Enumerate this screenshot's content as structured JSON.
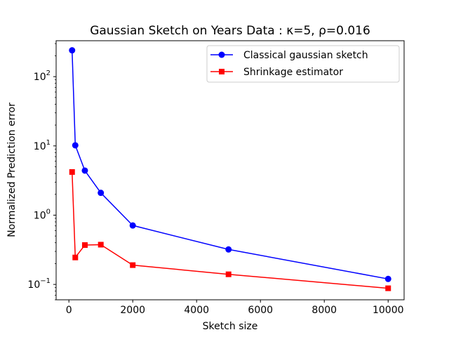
{
  "chart_data": {
    "type": "line",
    "title": "Gaussian Sketch on Years Data : κ=5, ρ=0.016",
    "xlabel": "Sketch size",
    "ylabel": "Normalized Prediction error",
    "x_scale": "linear",
    "y_scale": "log",
    "xlim": [
      -400,
      10500
    ],
    "ylim": [
      0.06,
      330
    ],
    "x_ticks": [
      0,
      2000,
      4000,
      6000,
      8000,
      10000
    ],
    "x_tick_labels": [
      "0",
      "2000",
      "4000",
      "6000",
      "8000",
      "10000"
    ],
    "y_ticks": [
      0.1,
      1,
      10,
      100
    ],
    "y_tick_labels": [
      {
        "base": "10",
        "exp": "−1"
      },
      {
        "base": "10",
        "exp": "0"
      },
      {
        "base": "10",
        "exp": "1"
      },
      {
        "base": "10",
        "exp": "2"
      }
    ],
    "grid": false,
    "legend_position": "upper right",
    "x": [
      100,
      200,
      500,
      1000,
      2000,
      5000,
      10000
    ],
    "series": [
      {
        "name": "Classical gaussian sketch",
        "color": "#0000ff",
        "marker": "circle",
        "values": [
          240,
          10.2,
          4.4,
          2.1,
          0.71,
          0.32,
          0.12
        ]
      },
      {
        "name": "Shrinkage estimator",
        "color": "#ff0000",
        "marker": "square",
        "values": [
          4.2,
          0.245,
          0.37,
          0.375,
          0.19,
          0.14,
          0.088
        ]
      }
    ]
  }
}
